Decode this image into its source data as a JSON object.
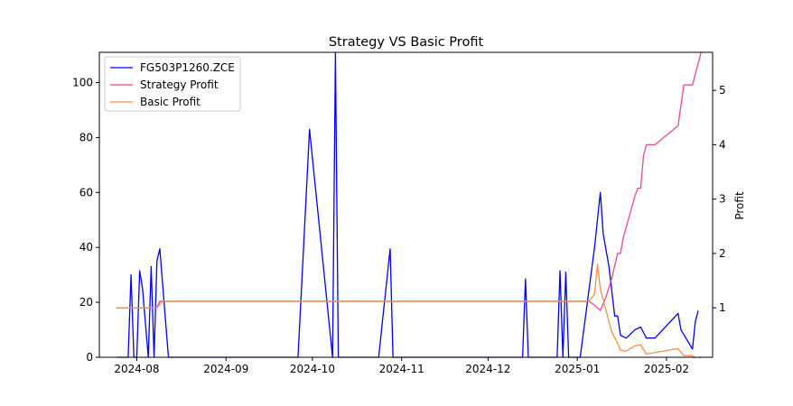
{
  "chart_data": {
    "type": "line",
    "title": "Strategy VS Basic Profit",
    "xlabel": "",
    "ylabel_left": "",
    "ylabel_right": "Profit",
    "x_tick_labels": [
      "2024-08",
      "2024-09",
      "2024-10",
      "2024-11",
      "2024-12",
      "2025-01",
      "2025-02"
    ],
    "y_left_ticks": [
      0,
      20,
      40,
      60,
      80,
      100
    ],
    "y_right_ticks": [
      1,
      2,
      3,
      4,
      5
    ],
    "ylim_left": [
      0,
      111
    ],
    "ylim_right": [
      0.09,
      5.7
    ],
    "xlim": [
      "2024-07-19",
      "2025-02-17"
    ],
    "legend_position": "upper-left",
    "grid": false,
    "series": [
      {
        "name": "FG503P1260.ZCE",
        "axis": "left",
        "color": "#0000ff",
        "points": [
          [
            "2024-07-25",
            0
          ],
          [
            "2024-07-29",
            0
          ],
          [
            "2024-07-30",
            30
          ],
          [
            "2024-07-31",
            0
          ],
          [
            "2024-08-01",
            0
          ],
          [
            "2024-08-02",
            31.5
          ],
          [
            "2024-08-03",
            25
          ],
          [
            "2024-08-05",
            0
          ],
          [
            "2024-08-06",
            33
          ],
          [
            "2024-08-07",
            0
          ],
          [
            "2024-08-08",
            35
          ],
          [
            "2024-08-09",
            39.5
          ],
          [
            "2024-08-12",
            0
          ],
          [
            "2024-09-26",
            0
          ],
          [
            "2024-09-30",
            83
          ],
          [
            "2024-10-08",
            0
          ],
          [
            "2024-10-09",
            111
          ],
          [
            "2024-10-10",
            0
          ],
          [
            "2024-10-24",
            0
          ],
          [
            "2024-10-28",
            39.5
          ],
          [
            "2024-10-29",
            0
          ],
          [
            "2024-12-13",
            0
          ],
          [
            "2024-12-14",
            28.5
          ],
          [
            "2024-12-15",
            0
          ],
          [
            "2024-12-25",
            0
          ],
          [
            "2024-12-26",
            31.5
          ],
          [
            "2024-12-27",
            0
          ],
          [
            "2024-12-28",
            31
          ],
          [
            "2024-12-29",
            0
          ],
          [
            "2025-01-02",
            0
          ],
          [
            "2025-01-07",
            40
          ],
          [
            "2025-01-09",
            60
          ],
          [
            "2025-01-10",
            45
          ],
          [
            "2025-01-12",
            33
          ],
          [
            "2025-01-14",
            15
          ],
          [
            "2025-01-15",
            15
          ],
          [
            "2025-01-16",
            8
          ],
          [
            "2025-01-18",
            7
          ],
          [
            "2025-01-21",
            10
          ],
          [
            "2025-01-23",
            11
          ],
          [
            "2025-01-25",
            7
          ],
          [
            "2025-01-28",
            7
          ],
          [
            "2025-02-05",
            16
          ],
          [
            "2025-02-06",
            10
          ],
          [
            "2025-02-10",
            3
          ],
          [
            "2025-02-11",
            13
          ],
          [
            "2025-02-12",
            17
          ]
        ]
      },
      {
        "name": "Strategy Profit",
        "axis": "right",
        "color": "#e8459a",
        "points": [
          [
            "2024-07-25",
            1.0
          ],
          [
            "2024-08-08",
            1.0
          ],
          [
            "2024-08-09",
            1.12
          ],
          [
            "2025-01-05",
            1.12
          ],
          [
            "2025-01-07",
            1.05
          ],
          [
            "2025-01-09",
            0.95
          ],
          [
            "2025-01-11",
            1.2
          ],
          [
            "2025-01-13",
            1.55
          ],
          [
            "2025-01-15",
            2.0
          ],
          [
            "2025-01-16",
            2.0
          ],
          [
            "2025-01-17",
            2.3
          ],
          [
            "2025-01-21",
            3.05
          ],
          [
            "2025-01-22",
            3.2
          ],
          [
            "2025-01-23",
            3.2
          ],
          [
            "2025-01-24",
            3.8
          ],
          [
            "2025-01-25",
            4.0
          ],
          [
            "2025-01-28",
            4.0
          ],
          [
            "2025-02-05",
            4.35
          ],
          [
            "2025-02-07",
            5.1
          ],
          [
            "2025-02-10",
            5.1
          ],
          [
            "2025-02-13",
            5.7
          ]
        ]
      },
      {
        "name": "Basic Profit",
        "axis": "right",
        "color": "#f0904a",
        "points": [
          [
            "2024-07-25",
            1.0
          ],
          [
            "2024-08-08",
            1.0
          ],
          [
            "2024-08-10",
            1.12
          ],
          [
            "2025-01-05",
            1.12
          ],
          [
            "2025-01-07",
            1.25
          ],
          [
            "2025-01-08",
            1.8
          ],
          [
            "2025-01-09",
            1.35
          ],
          [
            "2025-01-11",
            0.95
          ],
          [
            "2025-01-13",
            0.55
          ],
          [
            "2025-01-15",
            0.35
          ],
          [
            "2025-01-16",
            0.22
          ],
          [
            "2025-01-18",
            0.2
          ],
          [
            "2025-01-21",
            0.3
          ],
          [
            "2025-01-23",
            0.32
          ],
          [
            "2025-01-25",
            0.15
          ],
          [
            "2025-02-05",
            0.25
          ],
          [
            "2025-02-07",
            0.12
          ],
          [
            "2025-02-10",
            0.12
          ],
          [
            "2025-02-11",
            0.05
          ],
          [
            "2025-02-12",
            0.05
          ],
          [
            "2025-02-13",
            0.1
          ]
        ]
      }
    ]
  }
}
